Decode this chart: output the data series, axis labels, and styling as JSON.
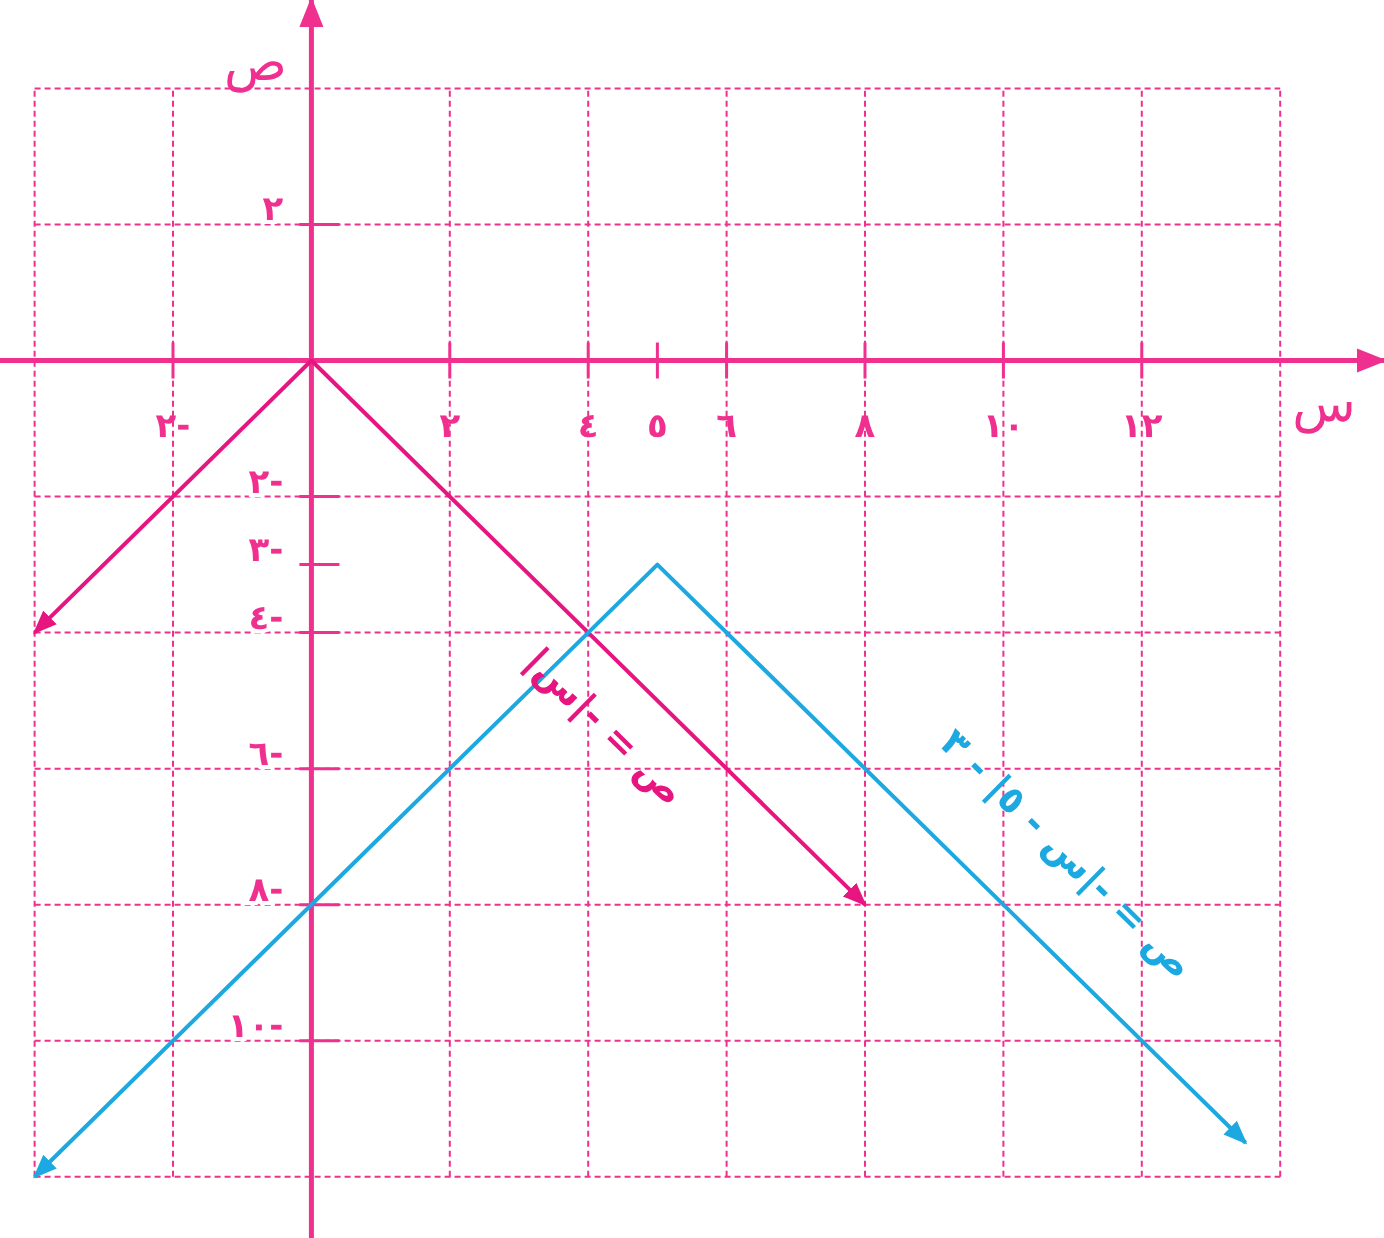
{
  "chart_data": {
    "type": "line",
    "xlabel": "س",
    "ylabel": "ص",
    "series": [
      {
        "color": "#e6157f",
        "x": [
          -4,
          0,
          8
        ],
        "values": [
          -4,
          0,
          -8
        ]
      },
      {
        "color": "#1ca8e0",
        "x": [
          -4,
          5,
          13.5
        ],
        "values": [
          -12,
          -3,
          -11.5
        ]
      }
    ],
    "annotations": [
      "ص = -|س|",
      "ص = -|س - ٥| - ٣"
    ],
    "xlim": [
      -4.5,
      15.5
    ],
    "ylim": [
      -12.9,
      5.3
    ],
    "xticks": [
      {
        "value": -2,
        "label": "٢-"
      },
      {
        "value": 0,
        "label": null
      },
      {
        "value": 2,
        "label": "٢"
      },
      {
        "value": 4,
        "label": "٤"
      },
      {
        "value": 5,
        "label": "٥"
      },
      {
        "value": 6,
        "label": "٦"
      },
      {
        "value": 8,
        "label": "٨"
      },
      {
        "value": 10,
        "label": "١٠"
      },
      {
        "value": 12,
        "label": "١٢"
      }
    ],
    "yticks": [
      {
        "value": -10,
        "label": "١٠-"
      },
      {
        "value": -8,
        "label": "٨-"
      },
      {
        "value": -6,
        "label": "٦-"
      },
      {
        "value": -4,
        "label": "٤-"
      },
      {
        "value": -3,
        "label": "٣-"
      },
      {
        "value": -2,
        "label": "٢-"
      },
      {
        "value": 0,
        "label": null
      },
      {
        "value": 2,
        "label": "٢"
      }
    ],
    "grid": true
  }
}
